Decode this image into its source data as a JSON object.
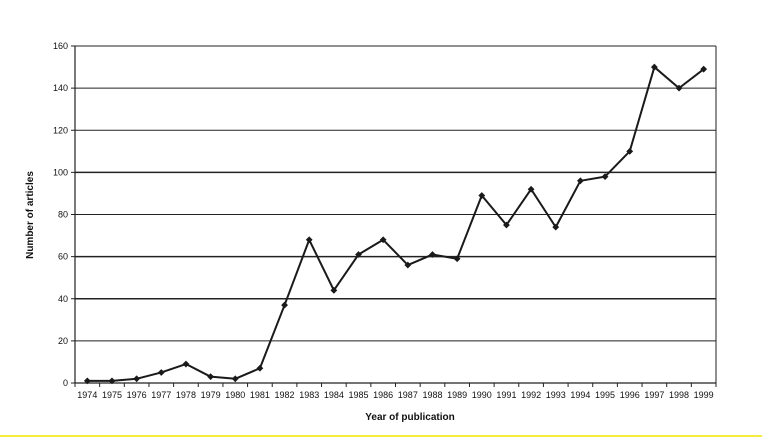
{
  "chart_data": {
    "type": "line",
    "title": "",
    "xlabel": "Year of publication",
    "ylabel": "Number of articles",
    "x": [
      "1974",
      "1975",
      "1976",
      "1977",
      "1978",
      "1979",
      "1980",
      "1981",
      "1982",
      "1983",
      "1984",
      "1985",
      "1986",
      "1987",
      "1988",
      "1989",
      "1990",
      "1991",
      "1992",
      "1993",
      "1994",
      "1995",
      "1996",
      "1997",
      "1998",
      "1999"
    ],
    "y_ticks": [
      0,
      20,
      40,
      60,
      80,
      100,
      120,
      140,
      160
    ],
    "ylim": [
      0,
      160
    ],
    "grid": true,
    "legend": "none",
    "series": [
      {
        "values": [
          1,
          1,
          2,
          5,
          9,
          3,
          2,
          7,
          37,
          68,
          44,
          61,
          68,
          56,
          61,
          59,
          89,
          75,
          92,
          74,
          96,
          98,
          110,
          150,
          140,
          149
        ],
        "color": "#1a1a1a",
        "marker": "diamond"
      }
    ]
  }
}
